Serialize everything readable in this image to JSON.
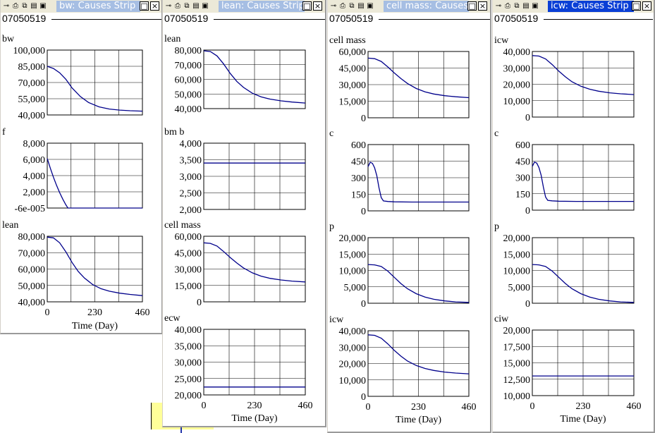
{
  "chart_data": [
    {
      "window_title": "bw: Causes Strip",
      "run_label": "07050519",
      "xlabel": "Time (Day)",
      "x_ticks": [
        "0",
        "230",
        "460"
      ],
      "xlim": [
        0,
        460
      ],
      "panels": [
        {
          "type": "line",
          "title": "bw",
          "ylim": [
            40000,
            100000
          ],
          "y_ticks": [
            "100,000",
            "85,000",
            "70,000",
            "55,000",
            "40,000"
          ],
          "x": [
            0,
            30,
            60,
            90,
            120,
            160,
            200,
            250,
            300,
            350,
            400,
            460
          ],
          "y": [
            85000,
            83000,
            79000,
            73000,
            65000,
            57000,
            51500,
            47500,
            45500,
            44500,
            43900,
            43500
          ]
        },
        {
          "type": "line",
          "title": "f",
          "ylim": [
            -6e-05,
            8000
          ],
          "y_ticks": [
            "8,000",
            "6,000",
            "4,000",
            "2,000",
            "-6e-005"
          ],
          "x": [
            0,
            15,
            30,
            45,
            60,
            75,
            90,
            100,
            110,
            200,
            300,
            460
          ],
          "y": [
            6100,
            4900,
            3800,
            2800,
            1900,
            1100,
            400,
            0,
            0,
            0,
            0,
            0
          ]
        },
        {
          "type": "line",
          "title": "lean",
          "ylim": [
            40000,
            80000
          ],
          "y_ticks": [
            "80,000",
            "70,000",
            "60,000",
            "50,000",
            "40,000"
          ],
          "x": [
            0,
            30,
            60,
            90,
            120,
            150,
            180,
            220,
            260,
            300,
            350,
            400,
            460
          ],
          "y": [
            79500,
            79000,
            76000,
            70500,
            64000,
            58500,
            54500,
            50500,
            48000,
            46500,
            45300,
            44500,
            43800
          ]
        }
      ]
    },
    {
      "window_title": "lean: Causes Strip",
      "run_label": "07050519",
      "xlabel": "Time (Day)",
      "x_ticks": [
        "0",
        "230",
        "460"
      ],
      "xlim": [
        0,
        460
      ],
      "panels": [
        {
          "type": "line",
          "title": "lean",
          "ylim": [
            40000,
            80000
          ],
          "y_ticks": [
            "80,000",
            "70,000",
            "60,000",
            "50,000",
            "40,000"
          ],
          "x": [
            0,
            30,
            60,
            90,
            120,
            150,
            180,
            220,
            260,
            300,
            350,
            400,
            460
          ],
          "y": [
            79500,
            79000,
            76000,
            70500,
            64000,
            58500,
            54500,
            50500,
            48000,
            46500,
            45300,
            44500,
            43800
          ]
        },
        {
          "type": "line",
          "title": "bm b",
          "ylim": [
            2000,
            4000
          ],
          "y_ticks": [
            "4,000",
            "3,500",
            "3,000",
            "2,500",
            "2,000"
          ],
          "x": [
            0,
            460
          ],
          "y": [
            3400,
            3400
          ]
        },
        {
          "type": "line",
          "title": "cell mass",
          "ylim": [
            0,
            60000
          ],
          "y_ticks": [
            "60,000",
            "45,000",
            "30,000",
            "15,000",
            "0"
          ],
          "x": [
            0,
            30,
            60,
            90,
            120,
            150,
            180,
            220,
            260,
            300,
            350,
            400,
            460
          ],
          "y": [
            54000,
            53500,
            51000,
            46000,
            40500,
            35500,
            31000,
            26500,
            23500,
            21500,
            20000,
            19000,
            18200
          ]
        },
        {
          "type": "line",
          "title": "ecw",
          "ylim": [
            20000,
            40000
          ],
          "y_ticks": [
            "40,000",
            "35,000",
            "30,000",
            "25,000",
            "20,000"
          ],
          "x": [
            0,
            460
          ],
          "y": [
            22400,
            22400
          ]
        }
      ]
    },
    {
      "window_title": "cell mass: Causes Strip",
      "run_label": "07050519",
      "xlabel": "Time (Day)",
      "x_ticks": [
        "0",
        "230",
        "460"
      ],
      "xlim": [
        0,
        460
      ],
      "panels": [
        {
          "type": "line",
          "title": "cell mass",
          "ylim": [
            0,
            60000
          ],
          "y_ticks": [
            "60,000",
            "45,000",
            "30,000",
            "15,000",
            "0"
          ],
          "x": [
            0,
            30,
            60,
            90,
            120,
            150,
            180,
            220,
            260,
            300,
            350,
            400,
            460
          ],
          "y": [
            54000,
            53500,
            51000,
            46000,
            40500,
            35500,
            31000,
            26500,
            23500,
            21500,
            20000,
            19000,
            18200
          ]
        },
        {
          "type": "line",
          "title": "c",
          "ylim": [
            0,
            600
          ],
          "y_ticks": [
            "600",
            "450",
            "300",
            "150",
            "0"
          ],
          "x": [
            0,
            10,
            20,
            30,
            40,
            50,
            60,
            70,
            90,
            120,
            200,
            300,
            460
          ],
          "y": [
            400,
            440,
            430,
            390,
            320,
            210,
            120,
            90,
            85,
            82,
            80,
            80,
            80
          ]
        },
        {
          "type": "line",
          "title": "p",
          "ylim": [
            0,
            20000
          ],
          "y_ticks": [
            "20,000",
            "15,000",
            "10,000",
            "5,000",
            "0"
          ],
          "x": [
            0,
            30,
            60,
            90,
            120,
            150,
            180,
            220,
            260,
            300,
            350,
            400,
            460
          ],
          "y": [
            11800,
            11700,
            11200,
            9800,
            7900,
            6000,
            4400,
            2900,
            1900,
            1200,
            700,
            400,
            250
          ]
        },
        {
          "type": "line",
          "title": "icw",
          "ylim": [
            0,
            40000
          ],
          "y_ticks": [
            "40,000",
            "30,000",
            "20,000",
            "10,000",
            "0"
          ],
          "x": [
            0,
            30,
            60,
            90,
            120,
            150,
            180,
            220,
            260,
            300,
            350,
            400,
            460
          ],
          "y": [
            37500,
            37200,
            35500,
            32000,
            28000,
            24500,
            21500,
            18800,
            17000,
            15800,
            14800,
            14200,
            13700
          ]
        }
      ]
    },
    {
      "window_title": "icw: Causes Strip",
      "run_label": "07050519",
      "xlabel": "Time (Day)",
      "x_ticks": [
        "0",
        "230",
        "460"
      ],
      "xlim": [
        0,
        460
      ],
      "panels": [
        {
          "type": "line",
          "title": "icw",
          "ylim": [
            0,
            40000
          ],
          "y_ticks": [
            "40,000",
            "30,000",
            "20,000",
            "10,000",
            "0"
          ],
          "x": [
            0,
            30,
            60,
            90,
            120,
            150,
            180,
            220,
            260,
            300,
            350,
            400,
            460
          ],
          "y": [
            37500,
            37200,
            35500,
            32000,
            28000,
            24500,
            21500,
            18800,
            17000,
            15800,
            14800,
            14200,
            13700
          ]
        },
        {
          "type": "line",
          "title": "c",
          "ylim": [
            0,
            600
          ],
          "y_ticks": [
            "600",
            "450",
            "300",
            "150",
            "0"
          ],
          "x": [
            0,
            10,
            20,
            30,
            40,
            50,
            60,
            70,
            90,
            120,
            200,
            300,
            460
          ],
          "y": [
            400,
            440,
            430,
            390,
            320,
            210,
            120,
            90,
            85,
            82,
            80,
            80,
            80
          ]
        },
        {
          "type": "line",
          "title": "p",
          "ylim": [
            0,
            20000
          ],
          "y_ticks": [
            "20,000",
            "15,000",
            "10,000",
            "5,000",
            "0"
          ],
          "x": [
            0,
            30,
            60,
            90,
            120,
            150,
            180,
            220,
            260,
            300,
            350,
            400,
            460
          ],
          "y": [
            11800,
            11700,
            11200,
            9800,
            7900,
            6000,
            4400,
            2900,
            1900,
            1200,
            700,
            400,
            250
          ]
        },
        {
          "type": "line",
          "title": "ciw",
          "ylim": [
            10000,
            20000
          ],
          "y_ticks": [
            "20,000",
            "17,500",
            "15,000",
            "12,500",
            "10,000"
          ],
          "x": [
            0,
            460
          ],
          "y": [
            13000,
            13000
          ]
        }
      ]
    }
  ],
  "colors": {
    "line": "#00008b",
    "grid": "#000000",
    "active_title": "#0a3fd6",
    "inactive_title": "#a6bee3"
  },
  "icons": [
    "pin-icon",
    "print-icon",
    "copy-icon",
    "clipboard-icon",
    "save-icon",
    "maximize-icon",
    "close-icon"
  ]
}
